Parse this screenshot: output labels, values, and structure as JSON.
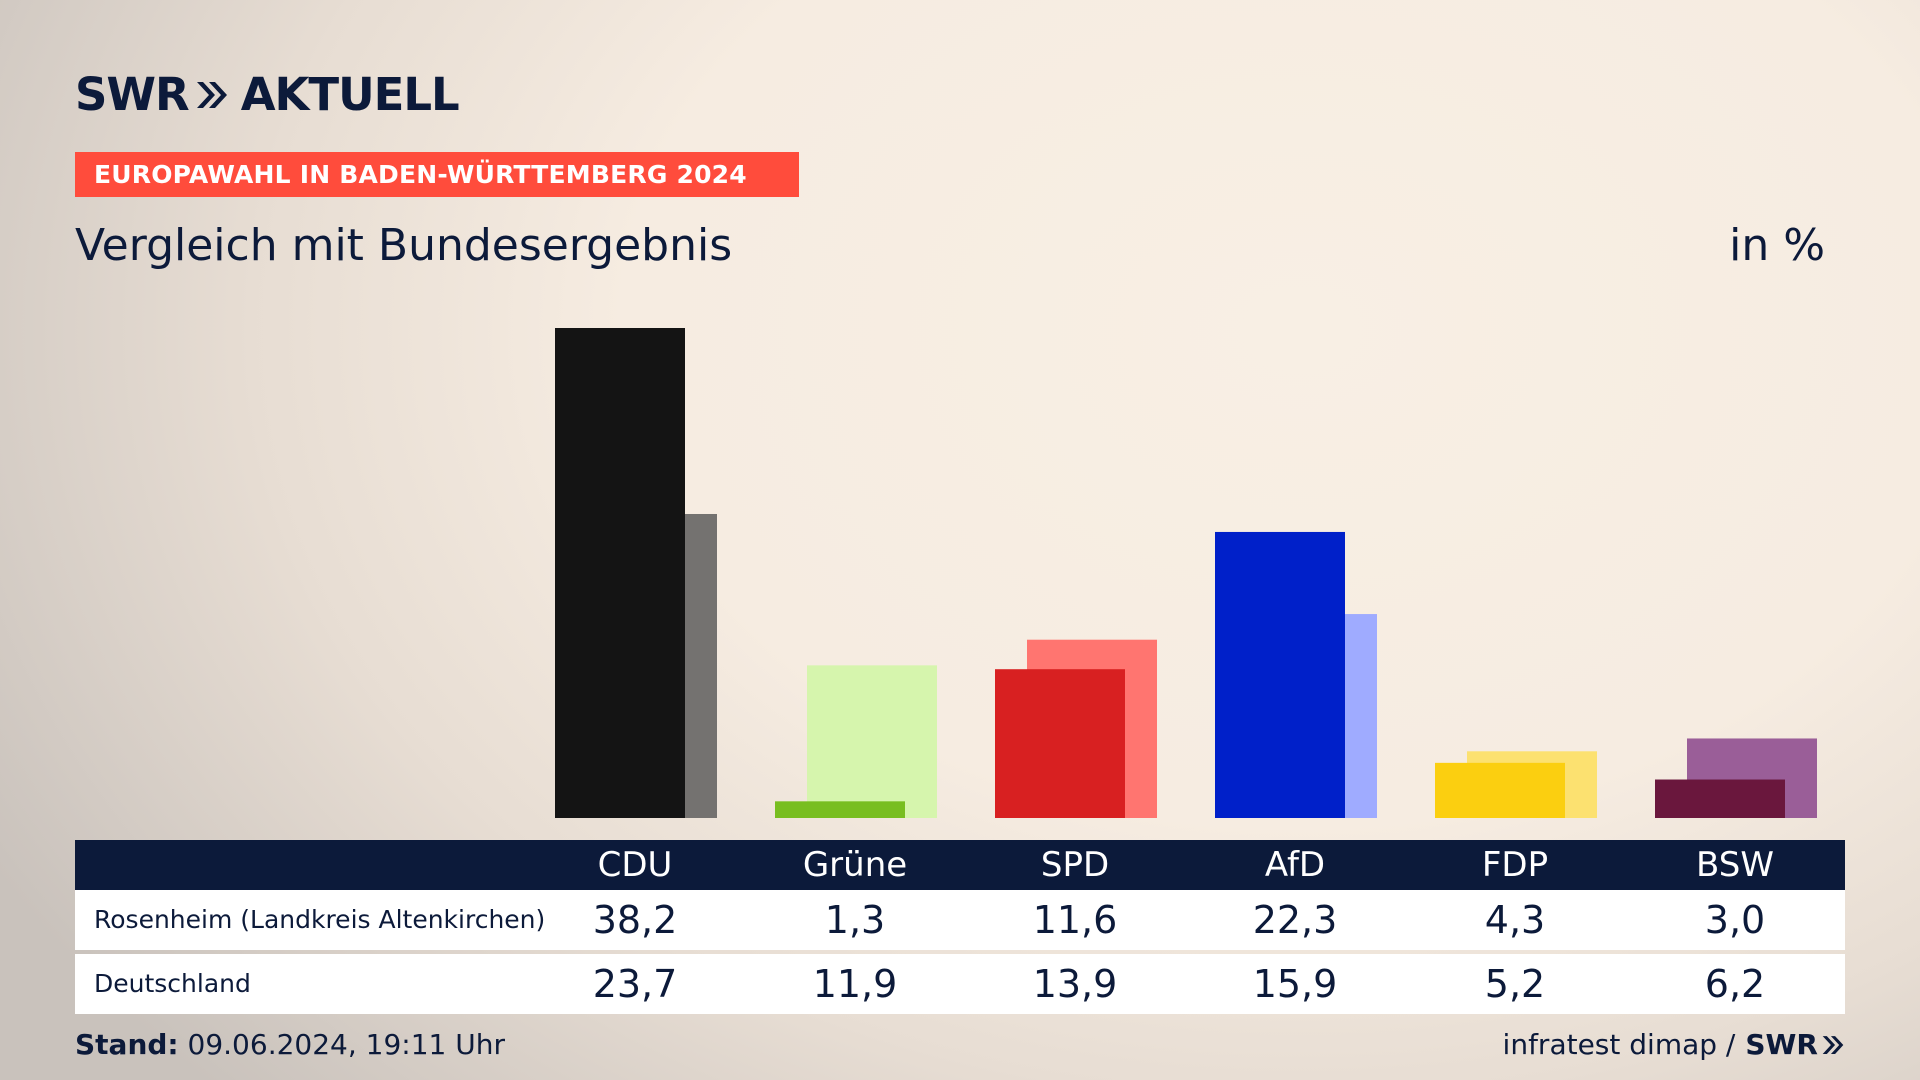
{
  "header": {
    "logo_left": "SWR",
    "logo_right": "AKTUELL",
    "banner": "EUROPAWAHL IN BADEN-WÜRTTEMBERG 2024",
    "subtitle": "Vergleich mit Bundesergebnis",
    "unit": "in %"
  },
  "chart_data": {
    "type": "bar",
    "categories": [
      "CDU",
      "Grüne",
      "SPD",
      "AfD",
      "FDP",
      "BSW"
    ],
    "series": [
      {
        "name": "Rosenheim (Landkreis  Altenkirchen)",
        "values": [
          38.2,
          1.3,
          11.6,
          22.3,
          4.3,
          3.0
        ]
      },
      {
        "name": "Deutschland",
        "values": [
          23.7,
          11.9,
          13.9,
          15.9,
          5.2,
          6.2
        ]
      }
    ],
    "value_labels": {
      "Rosenheim (Landkreis  Altenkirchen)": [
        "38,2",
        "1,3",
        "11,6",
        "22,3",
        "4,3",
        "3,0"
      ],
      "Deutschland": [
        "23,7",
        "11,9",
        "13,9",
        "15,9",
        "5,2",
        "6,2"
      ]
    },
    "colors": {
      "primary": [
        "#141414",
        "#78be20",
        "#d82021",
        "#0020c9",
        "#fbcf10",
        "#6a173d"
      ],
      "secondary": [
        "#747270",
        "#d6f5ad",
        "#ff7570",
        "#9fabff",
        "#fce170",
        "#9a5e98"
      ]
    },
    "ylim": [
      0,
      38.2
    ],
    "grid": false,
    "legend": "table-below"
  },
  "footer": {
    "stand_label": "Stand:",
    "stand_value": "09.06.2024, 19:11 Uhr",
    "source": "infratest dimap /",
    "source_brand": "SWR"
  }
}
